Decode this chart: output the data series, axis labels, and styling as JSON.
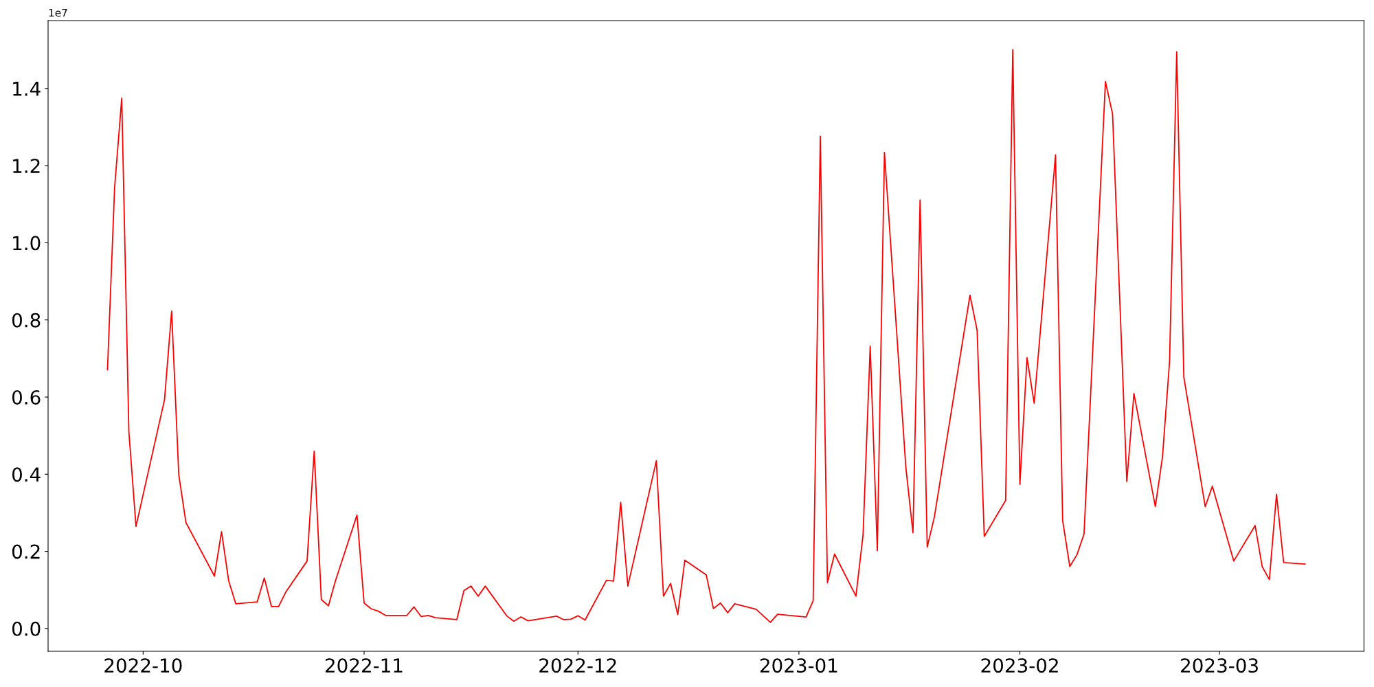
{
  "chart_data": {
    "type": "line",
    "annotations": [
      "1e7"
    ],
    "x": [
      "2022-09-26",
      "2022-09-27",
      "2022-09-28",
      "2022-09-29",
      "2022-09-30",
      "2022-10-04",
      "2022-10-05",
      "2022-10-06",
      "2022-10-07",
      "2022-10-11",
      "2022-10-12",
      "2022-10-13",
      "2022-10-14",
      "2022-10-17",
      "2022-10-18",
      "2022-10-19",
      "2022-10-20",
      "2022-10-21",
      "2022-10-24",
      "2022-10-25",
      "2022-10-26",
      "2022-10-27",
      "2022-10-28",
      "2022-10-31",
      "2022-11-01",
      "2022-11-02",
      "2022-11-03",
      "2022-11-04",
      "2022-11-07",
      "2022-11-08",
      "2022-11-09",
      "2022-11-10",
      "2022-11-11",
      "2022-11-14",
      "2022-11-15",
      "2022-11-16",
      "2022-11-17",
      "2022-11-18",
      "2022-11-21",
      "2022-11-22",
      "2022-11-23",
      "2022-11-24",
      "2022-11-28",
      "2022-11-29",
      "2022-11-30",
      "2022-12-01",
      "2022-12-02",
      "2022-12-05",
      "2022-12-06",
      "2022-12-07",
      "2022-12-08",
      "2022-12-12",
      "2022-12-13",
      "2022-12-14",
      "2022-12-15",
      "2022-12-16",
      "2022-12-19",
      "2022-12-20",
      "2022-12-21",
      "2022-12-22",
      "2022-12-23",
      "2022-12-26",
      "2022-12-28",
      "2022-12-29",
      "2023-01-02",
      "2023-01-03",
      "2023-01-04",
      "2023-01-05",
      "2023-01-06",
      "2023-01-09",
      "2023-01-10",
      "2023-01-11",
      "2023-01-12",
      "2023-01-13",
      "2023-01-16",
      "2023-01-17",
      "2023-01-18",
      "2023-01-19",
      "2023-01-20",
      "2023-01-25",
      "2023-01-26",
      "2023-01-27",
      "2023-01-30",
      "2023-01-31",
      "2023-02-01",
      "2023-02-02",
      "2023-02-03",
      "2023-02-06",
      "2023-02-07",
      "2023-02-08",
      "2023-02-09",
      "2023-02-10",
      "2023-02-13",
      "2023-02-14",
      "2023-02-16",
      "2023-02-17",
      "2023-02-20",
      "2023-02-21",
      "2023-02-22",
      "2023-02-23",
      "2023-02-24",
      "2023-02-27",
      "2023-02-28",
      "2023-03-03",
      "2023-03-06",
      "2023-03-07",
      "2023-03-08",
      "2023-03-09",
      "2023-03-10",
      "2023-03-13"
    ],
    "series": [
      {
        "color": "#ff0000",
        "values": [
          0.671,
          1.143,
          1.375,
          0.51,
          0.265,
          0.593,
          0.823,
          0.399,
          0.275,
          0.136,
          0.251,
          0.124,
          0.064,
          0.069,
          0.131,
          0.057,
          0.057,
          0.094,
          0.175,
          0.46,
          0.075,
          0.059,
          0.125,
          0.294,
          0.066,
          0.051,
          0.045,
          0.034,
          0.034,
          0.056,
          0.031,
          0.034,
          0.028,
          0.023,
          0.098,
          0.11,
          0.084,
          0.11,
          0.033,
          0.019,
          0.03,
          0.02,
          0.032,
          0.023,
          0.024,
          0.033,
          0.022,
          0.125,
          0.123,
          0.327,
          0.11,
          0.435,
          0.084,
          0.117,
          0.036,
          0.177,
          0.139,
          0.052,
          0.066,
          0.041,
          0.064,
          0.05,
          0.016,
          0.037,
          0.03,
          0.072,
          1.276,
          0.119,
          0.193,
          0.084,
          0.243,
          0.732,
          0.202,
          1.234,
          0.418,
          0.248,
          1.111,
          0.211,
          0.289,
          0.864,
          0.773,
          0.239,
          0.332,
          1.501,
          0.374,
          0.702,
          0.584,
          1.228,
          0.28,
          0.161,
          0.191,
          0.245,
          1.418,
          1.334,
          0.381,
          0.609,
          0.316,
          0.444,
          0.693,
          1.495,
          0.652,
          0.316,
          0.369,
          0.175,
          0.267,
          0.16,
          0.127,
          0.348,
          0.171,
          0.167
        ]
      }
    ],
    "xlim": [
      "2022-09-17T16:00",
      "2023-03-21T06:30"
    ],
    "xticks": [
      "2022-10",
      "2022-11",
      "2022-12",
      "2023-01",
      "2023-02",
      "2023-03"
    ],
    "ylim": [
      -0.059,
      1.576
    ],
    "yticks": [
      {
        "value": 0,
        "label": "0.0"
      },
      0.2,
      0.4,
      0.6,
      0.8,
      {
        "value": 1,
        "label": "1.0"
      },
      1.2,
      1.4
    ],
    "grid": false,
    "marker": "none",
    "line_style": "solid"
  }
}
